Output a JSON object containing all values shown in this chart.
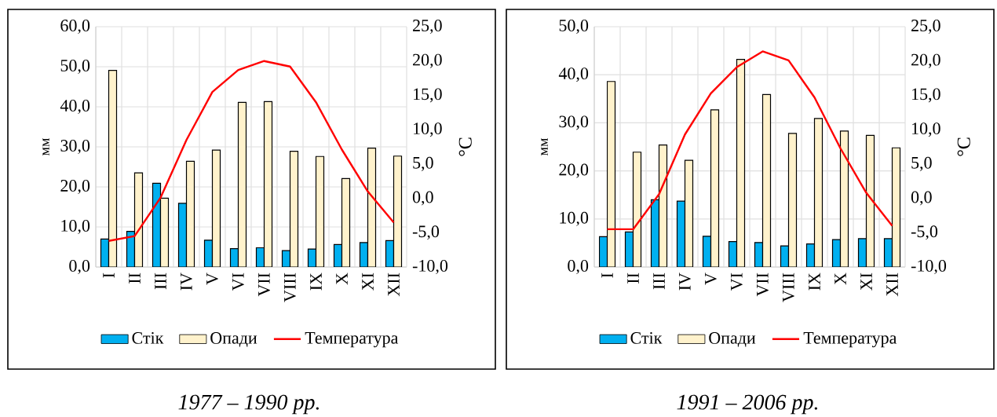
{
  "chart_data": [
    {
      "type": "bar",
      "categories": [
        "I",
        "II",
        "III",
        "IV",
        "V",
        "VI",
        "VII",
        "VIII",
        "IX",
        "X",
        "XI",
        "XII"
      ],
      "series": [
        {
          "name": "Стік",
          "type": "bar",
          "color": "#00b0f0",
          "values": [
            7.0,
            8.9,
            20.9,
            15.9,
            6.7,
            4.6,
            4.8,
            4.1,
            4.5,
            5.6,
            6.1,
            6.6
          ]
        },
        {
          "name": "Опади",
          "type": "bar",
          "color": "#fff2cc",
          "values": [
            49.1,
            23.5,
            17.2,
            26.4,
            29.2,
            41.1,
            41.3,
            28.9,
            27.6,
            22.1,
            29.7,
            27.7
          ]
        },
        {
          "name": "Температура",
          "type": "line",
          "axis": "y2",
          "color": "#ff0000",
          "values": [
            -6.2,
            -5.5,
            0.1,
            8.5,
            15.5,
            18.7,
            20.0,
            19.2,
            14.0,
            7.1,
            1.0,
            -3.5
          ]
        }
      ],
      "ylabel": "мм",
      "y2label": "°C",
      "ylim": [
        0,
        60
      ],
      "yticks": [
        {
          "value": 0,
          "label": "0,0"
        },
        {
          "value": 10,
          "label": "10,0"
        },
        {
          "value": 20,
          "label": "20,0"
        },
        {
          "value": 30,
          "label": "30,0"
        },
        {
          "value": 40,
          "label": "40,0"
        },
        {
          "value": 50,
          "label": "50,0"
        },
        {
          "value": 60,
          "label": "60,0"
        }
      ],
      "y2lim": [
        -10,
        25
      ],
      "y2ticks": [
        {
          "value": -10,
          "label": "-10,0"
        },
        {
          "value": -5,
          "label": "-5,0"
        },
        {
          "value": 0,
          "label": "0,0"
        },
        {
          "value": 5,
          "label": "5,0"
        },
        {
          "value": 10,
          "label": "10,0"
        },
        {
          "value": 15,
          "label": "15,0"
        },
        {
          "value": 20,
          "label": "20,0"
        },
        {
          "value": 25,
          "label": "25,0"
        }
      ],
      "grid": true,
      "legend": "bottom",
      "annotations": [
        "1977 – 1990 рр."
      ]
    },
    {
      "type": "bar",
      "categories": [
        "I",
        "II",
        "III",
        "IV",
        "V",
        "VI",
        "VII",
        "VIII",
        "IX",
        "X",
        "XI",
        "XII"
      ],
      "series": [
        {
          "name": "Стік",
          "type": "bar",
          "color": "#00b0f0",
          "values": [
            6.3,
            7.3,
            14.0,
            13.7,
            6.4,
            5.3,
            5.1,
            4.4,
            4.8,
            5.7,
            5.9,
            5.9
          ]
        },
        {
          "name": "Опади",
          "type": "bar",
          "color": "#fff2cc",
          "values": [
            38.6,
            23.9,
            25.4,
            22.2,
            32.7,
            43.2,
            35.9,
            27.8,
            30.9,
            28.3,
            27.4,
            24.8
          ]
        },
        {
          "name": "Температура",
          "type": "line",
          "axis": "y2",
          "color": "#ff0000",
          "values": [
            -4.5,
            -4.5,
            0.6,
            9.3,
            15.3,
            19.1,
            21.4,
            20.1,
            14.7,
            7.3,
            0.8,
            -4.0
          ]
        }
      ],
      "ylabel": "мм",
      "y2label": "°C",
      "ylim": [
        0,
        50
      ],
      "yticks": [
        {
          "value": 0,
          "label": "0,0"
        },
        {
          "value": 10,
          "label": "10,0"
        },
        {
          "value": 20,
          "label": "20,0"
        },
        {
          "value": 30,
          "label": "30,0"
        },
        {
          "value": 40,
          "label": "40,0"
        },
        {
          "value": 50,
          "label": "50,0"
        }
      ],
      "y2lim": [
        -10,
        25
      ],
      "y2ticks": [
        {
          "value": -10,
          "label": "-10,0"
        },
        {
          "value": -5,
          "label": "-5,0"
        },
        {
          "value": 0,
          "label": "0,0"
        },
        {
          "value": 5,
          "label": "5,0"
        },
        {
          "value": 10,
          "label": "10,0"
        },
        {
          "value": 15,
          "label": "15,0"
        },
        {
          "value": 20,
          "label": "20,0"
        },
        {
          "value": 25,
          "label": "25,0"
        }
      ],
      "grid": true,
      "legend": "bottom",
      "annotations": [
        "1991 – 2006 рр."
      ]
    }
  ]
}
